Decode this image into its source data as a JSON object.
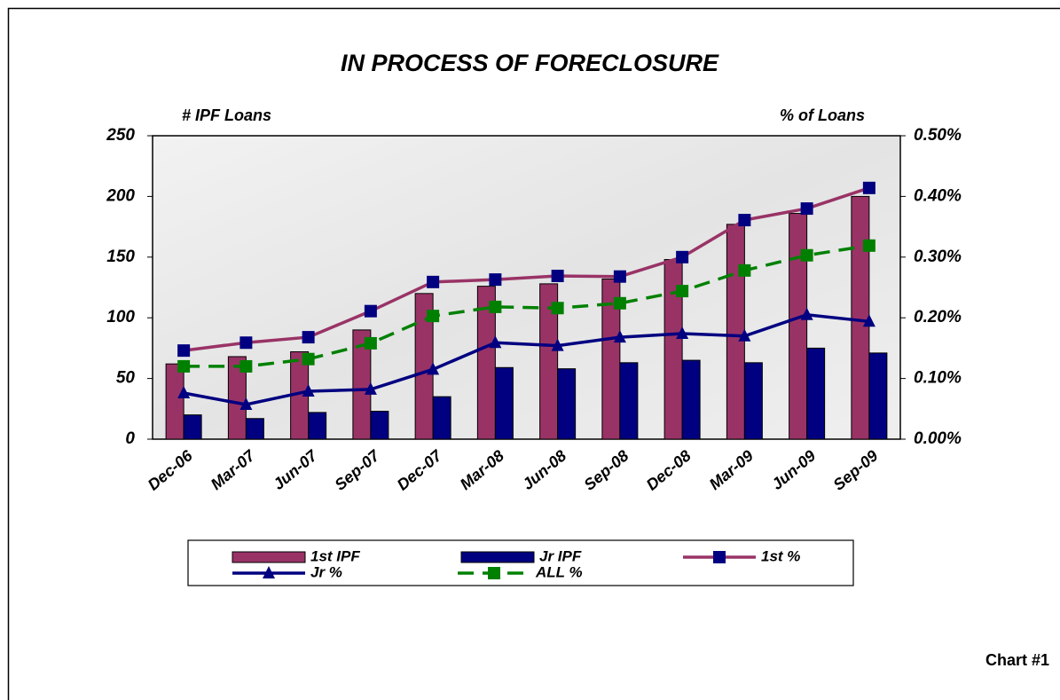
{
  "chart_data": {
    "type": "bar",
    "title": "IN PROCESS OF FORECLOSURE",
    "y_label": "# IPF Loans",
    "y2_label": "% of Loans",
    "categories": [
      "Dec-06",
      "Mar-07",
      "Jun-07",
      "Sep-07",
      "Dec-07",
      "Mar-08",
      "Jun-08",
      "Sep-08",
      "Dec-08",
      "Mar-09",
      "Jun-09",
      "Sep-09"
    ],
    "series": [
      {
        "name": "1st IPF",
        "type": "bar",
        "color": "#993366",
        "values": [
          62,
          68,
          72,
          90,
          120,
          126,
          128,
          132,
          148,
          177,
          186,
          200
        ]
      },
      {
        "name": "Jr IPF",
        "type": "bar",
        "color": "#000080",
        "values": [
          20,
          17,
          22,
          23,
          35,
          59,
          58,
          63,
          65,
          63,
          75,
          71
        ]
      },
      {
        "name": "1st %",
        "type": "line",
        "axis": "y2",
        "color": "#993366",
        "marker": "square",
        "marker_color": "#000080",
        "values": [
          0.146,
          0.159,
          0.168,
          0.211,
          0.259,
          0.263,
          0.269,
          0.268,
          0.3,
          0.361,
          0.38,
          0.414
        ]
      },
      {
        "name": "Jr %",
        "type": "line",
        "axis": "y2",
        "color": "#000080",
        "marker": "triangle",
        "marker_color": "#000080",
        "values": [
          0.076,
          0.057,
          0.079,
          0.082,
          0.115,
          0.159,
          0.154,
          0.168,
          0.174,
          0.17,
          0.205,
          0.194
        ]
      },
      {
        "name": "ALL %",
        "type": "line",
        "axis": "y2",
        "color": "#008000",
        "marker": "square",
        "marker_color": "#008000",
        "dashed": true,
        "values": [
          0.12,
          0.12,
          0.132,
          0.158,
          0.203,
          0.218,
          0.216,
          0.224,
          0.244,
          0.278,
          0.303,
          0.319
        ]
      }
    ],
    "ylim": [
      0,
      250
    ],
    "yticks": [
      0,
      50,
      100,
      150,
      200,
      250
    ],
    "y2lim": [
      0,
      0.5
    ],
    "y2ticks": [
      {
        "value": 0,
        "label": "0.00%"
      },
      {
        "value": 0.1,
        "label": "0.10%"
      },
      {
        "value": 0.2,
        "label": "0.20%"
      },
      {
        "value": 0.3,
        "label": "0.30%"
      },
      {
        "value": 0.4,
        "label": "0.40%"
      },
      {
        "value": 0.5,
        "label": "0.50%"
      }
    ],
    "grid": false,
    "legend": "bottom"
  },
  "label": "Chart #1"
}
